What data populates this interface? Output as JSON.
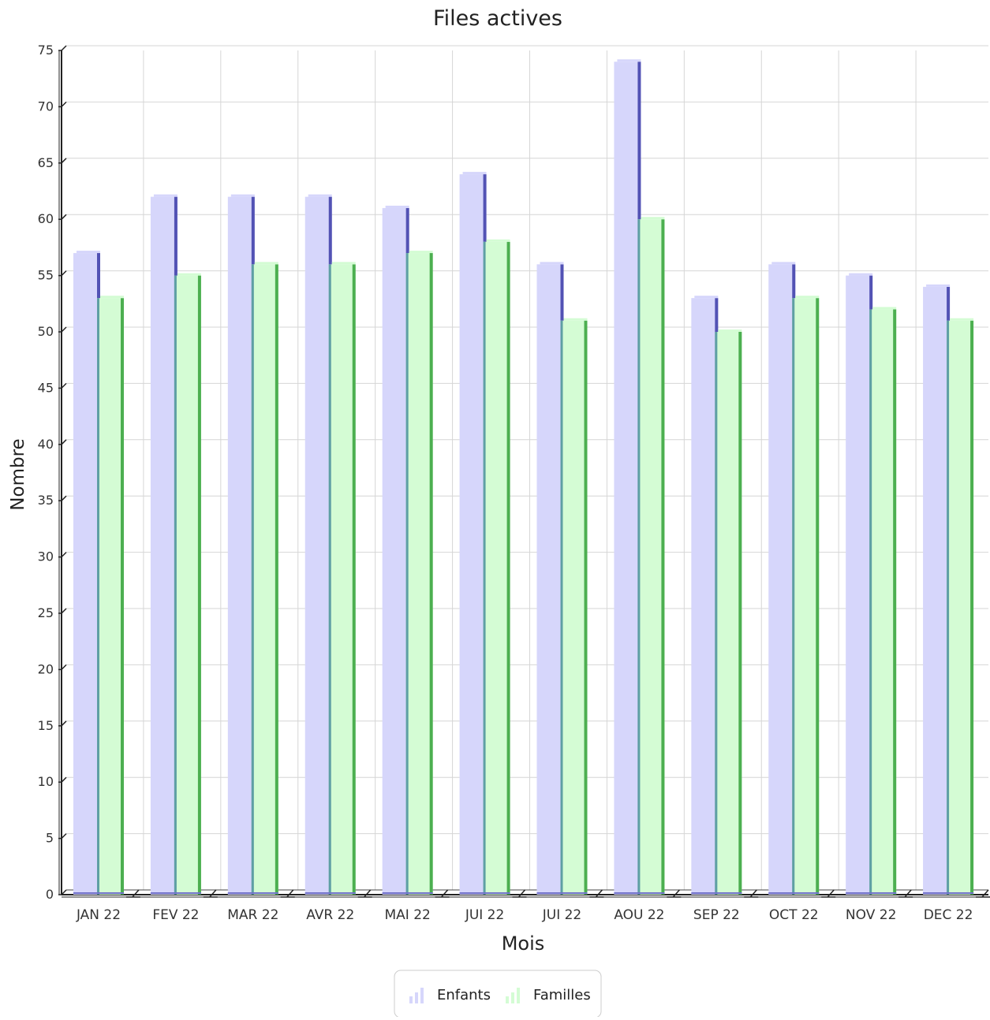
{
  "chart_data": {
    "type": "bar",
    "title": "Files actives",
    "xlabel": "Mois",
    "ylabel": "Nombre",
    "ylim": [
      0,
      75
    ],
    "ytick_step": 5,
    "grid": true,
    "legend_position": "bottom-center",
    "categories": [
      "JAN 22",
      "FEV 22",
      "MAR 22",
      "AVR 22",
      "MAI 22",
      "JUI 22",
      "JUI 22",
      "AOU 22",
      "SEP 22",
      "OCT 22",
      "NOV 22",
      "DEC 22"
    ],
    "series": [
      {
        "name": "Enfants",
        "values": [
          57,
          62,
          62,
          62,
          61,
          64,
          56,
          74,
          53,
          56,
          55,
          54
        ],
        "color": "#d6d6fb",
        "edge_color": "#5252b4"
      },
      {
        "name": "Familles",
        "values": [
          53,
          55,
          56,
          56,
          57,
          58,
          51,
          60,
          50,
          53,
          52,
          51
        ],
        "color": "#d4fcd4",
        "edge_color": "#4caf50"
      }
    ]
  }
}
